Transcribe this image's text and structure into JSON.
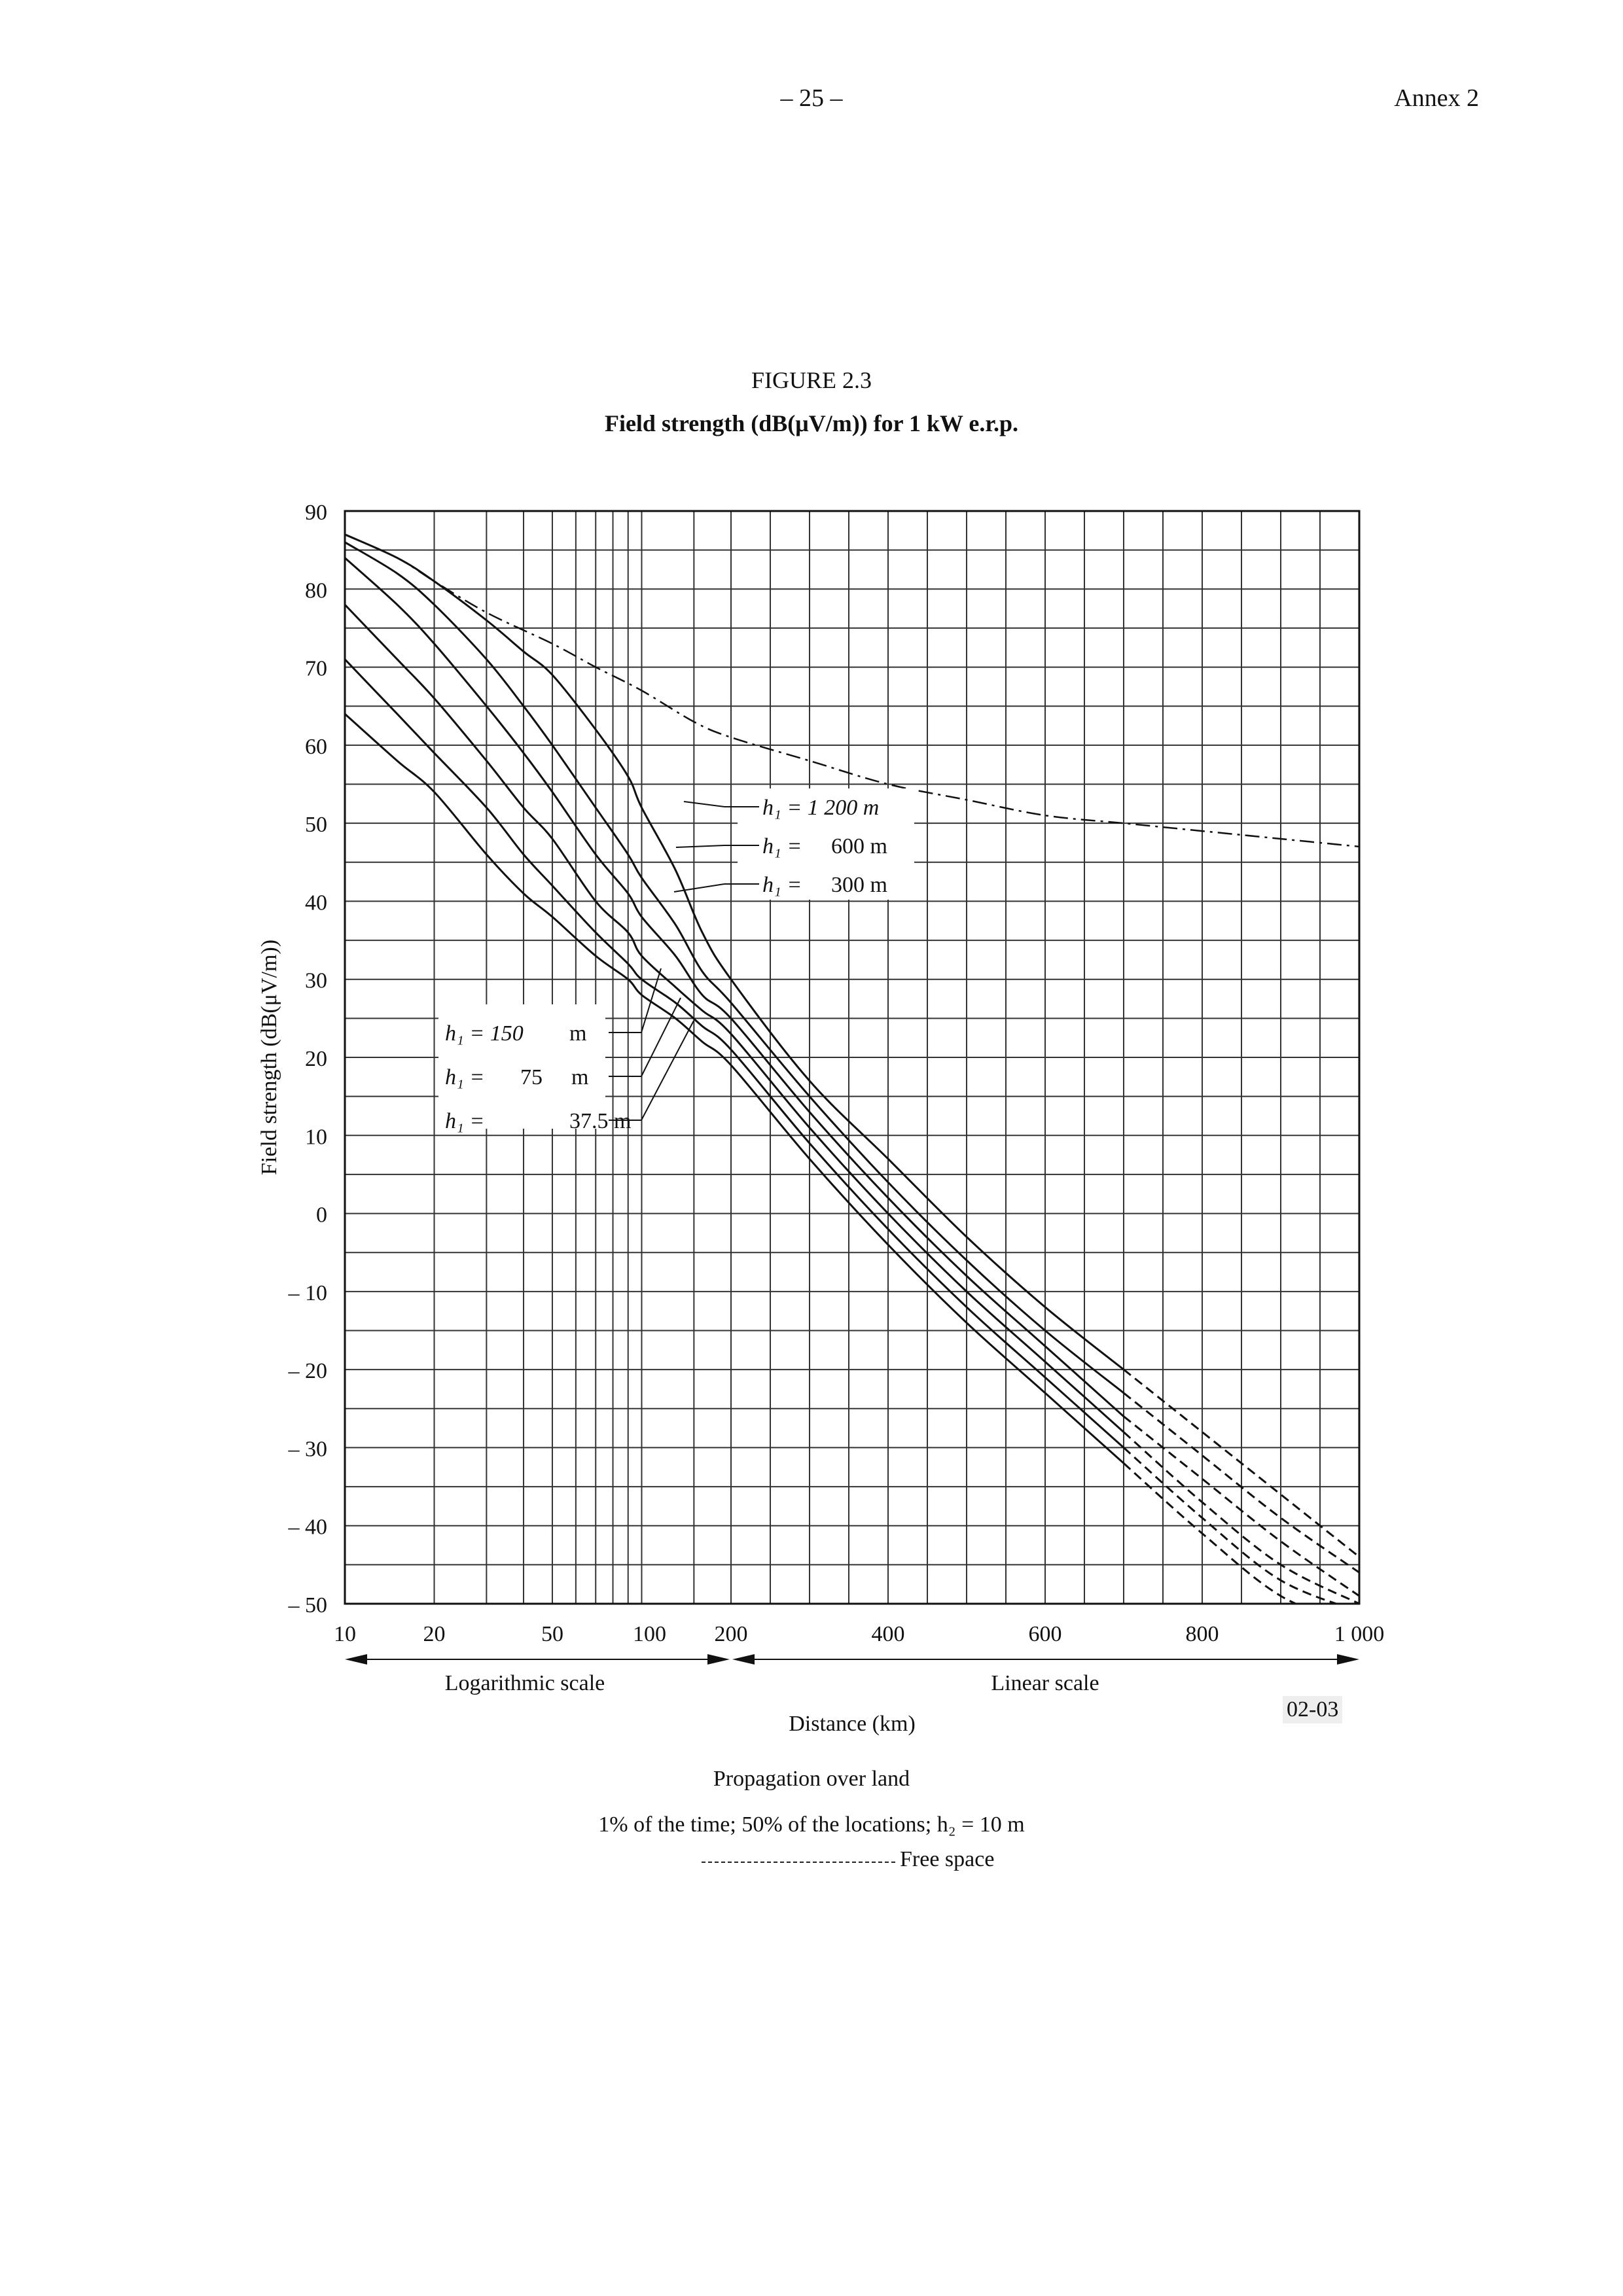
{
  "header": {
    "page_number": "– 25 –",
    "annex": "Annex 2"
  },
  "figure": {
    "number": "FIGURE 2.3",
    "title": "Field strength (dB(μV/m)) for 1 kW e.r.p.",
    "code": "02-03"
  },
  "caption": {
    "line1": "Propagation over land",
    "line2": "1% of the time; 50% of the locations; h₂ = 10 m",
    "line3": "Free space"
  },
  "chart_data": {
    "type": "line",
    "title": "Field strength (dB(μV/m)) for 1 kW e.r.p.",
    "xlabel": "Distance (km)",
    "ylabel": "Field strength (dB(μV/m))",
    "x_scale": "logarithmic 10–200 km, linear 200–1 000 km",
    "xlim": [
      10,
      1000
    ],
    "ylim": [
      -50,
      90
    ],
    "x_ticks": [
      {
        "value": 10,
        "label": "10"
      },
      {
        "value": 20,
        "label": "20"
      },
      {
        "value": 50,
        "label": "50"
      },
      {
        "value": 100,
        "label": "100"
      },
      {
        "value": 200,
        "label": "200"
      },
      {
        "value": 400,
        "label": "400"
      },
      {
        "value": 600,
        "label": "600"
      },
      {
        "value": 800,
        "label": "800"
      },
      {
        "value": 1000,
        "label": "1 000"
      }
    ],
    "y_ticks": [
      {
        "value": 90,
        "label": "90"
      },
      {
        "value": 80,
        "label": "80"
      },
      {
        "value": 70,
        "label": "70"
      },
      {
        "value": 60,
        "label": "60"
      },
      {
        "value": 50,
        "label": "50"
      },
      {
        "value": 40,
        "label": "40"
      },
      {
        "value": 30,
        "label": "30"
      },
      {
        "value": 20,
        "label": "20"
      },
      {
        "value": 10,
        "label": "10"
      },
      {
        "value": 0,
        "label": "0"
      },
      {
        "value": -10,
        "label": "– 10"
      },
      {
        "value": -20,
        "label": "– 20"
      },
      {
        "value": -30,
        "label": "– 30"
      },
      {
        "value": -40,
        "label": "– 40"
      },
      {
        "value": -50,
        "label": "– 50"
      }
    ],
    "scale_labels": {
      "log": "Logarithmic scale",
      "linear": "Linear scale"
    },
    "grid": true,
    "series": [
      {
        "name": "h₁ = 1 200 m",
        "label_lines": [
          "h₁ = 1 200 m"
        ],
        "x": [
          10,
          15,
          20,
          30,
          40,
          50,
          70,
          90,
          100,
          130,
          160,
          200,
          300,
          400,
          500,
          600,
          700,
          800,
          900,
          1000
        ],
        "y": [
          87,
          84,
          81,
          76,
          72,
          69,
          62,
          56,
          52,
          44,
          36,
          30,
          17,
          7,
          -3,
          -12,
          -20,
          -28,
          -36,
          -44
        ],
        "dashed_after": 700
      },
      {
        "name": "h₁ = 600 m",
        "label_lines": [
          "h₁ =",
          "600 m"
        ],
        "x": [
          10,
          15,
          20,
          30,
          40,
          50,
          70,
          90,
          100,
          130,
          160,
          200,
          300,
          400,
          500,
          600,
          700,
          800,
          900,
          1000
        ],
        "y": [
          86,
          82,
          78,
          71,
          65,
          60,
          52,
          46,
          43,
          37,
          31,
          27,
          15,
          4,
          -6,
          -15,
          -23,
          -31,
          -39,
          -46
        ],
        "dashed_after": 700
      },
      {
        "name": "h₁ = 300 m",
        "label_lines": [
          "h₁ =",
          "300 m"
        ],
        "x": [
          10,
          15,
          20,
          30,
          40,
          50,
          70,
          90,
          100,
          130,
          160,
          200,
          300,
          400,
          500,
          600,
          700,
          800,
          900,
          1000
        ],
        "y": [
          84,
          78,
          73,
          65,
          59,
          54,
          46,
          41,
          38,
          33,
          28,
          25,
          13,
          2,
          -8,
          -17,
          -26,
          -34,
          -42,
          -49
        ],
        "dashed_after": 650
      },
      {
        "name": "h₁ = 150 m",
        "label_lines": [
          "h₁ = 150",
          "m"
        ],
        "x": [
          10,
          15,
          20,
          30,
          40,
          50,
          70,
          90,
          100,
          130,
          160,
          200,
          300,
          400,
          500,
          600,
          700,
          800,
          900,
          1000
        ],
        "y": [
          78,
          71,
          66,
          58,
          52,
          48,
          40,
          36,
          33,
          29,
          26,
          23,
          11,
          0,
          -10,
          -19,
          -28,
          -37,
          -45,
          -50
        ],
        "dashed_after": 650
      },
      {
        "name": "h₁ = 75 m",
        "label_lines": [
          "h₁ =",
          "75",
          "m"
        ],
        "x": [
          10,
          15,
          20,
          30,
          40,
          50,
          70,
          90,
          100,
          130,
          160,
          200,
          300,
          400,
          500,
          600,
          700,
          800,
          900,
          1000
        ],
        "y": [
          71,
          64,
          59,
          52,
          46,
          42,
          36,
          32,
          30,
          27,
          24,
          21,
          9,
          -2,
          -12,
          -21,
          -30,
          -39,
          -47,
          -51
        ],
        "dashed_after": 650
      },
      {
        "name": "h₁ = 37.5 m",
        "label_lines": [
          "h₁ =",
          "37.5 m"
        ],
        "x": [
          10,
          15,
          20,
          30,
          40,
          50,
          70,
          90,
          100,
          130,
          160,
          200,
          300,
          400,
          500,
          600,
          700,
          800,
          900,
          1000
        ],
        "y": [
          64,
          58,
          54,
          46,
          41,
          38,
          33,
          30,
          28,
          25,
          22,
          19,
          7,
          -4,
          -14,
          -23,
          -32,
          -41,
          -49,
          -53
        ],
        "dashed_after": 650
      },
      {
        "name": "Free space",
        "label_lines": [],
        "style": "dash-dot",
        "x": [
          10,
          15,
          20,
          30,
          50,
          70,
          100,
          150,
          200,
          300,
          400,
          500,
          600,
          700,
          800,
          900,
          1000
        ],
        "y": [
          87,
          84,
          81,
          77,
          73,
          70,
          67,
          63,
          61,
          58,
          55,
          53,
          51,
          50,
          49,
          48,
          47
        ]
      }
    ]
  }
}
